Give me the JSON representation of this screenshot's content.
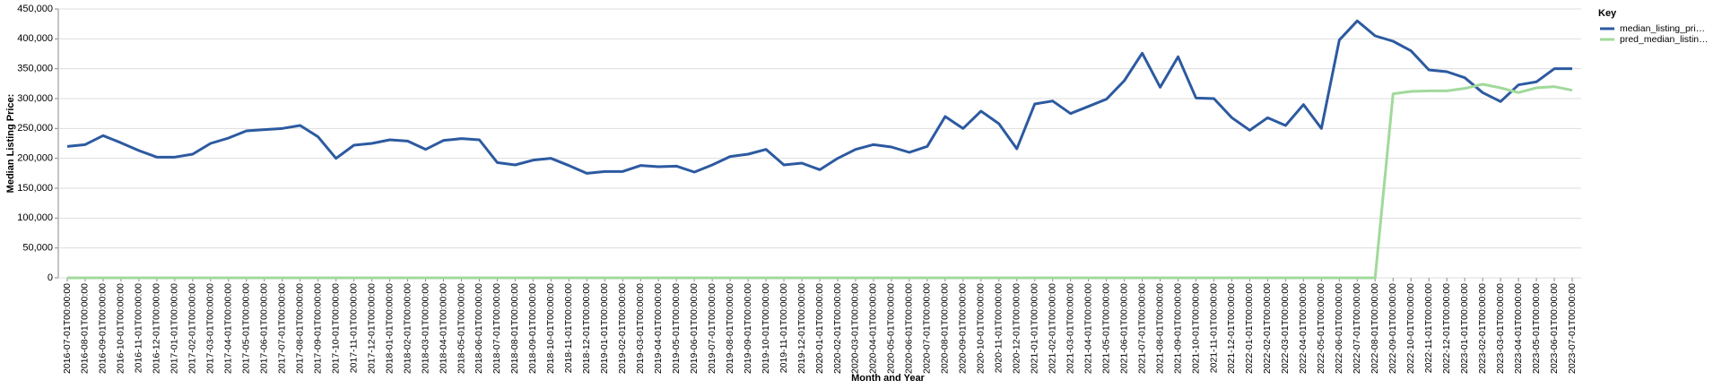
{
  "chart_data": {
    "type": "line",
    "x_label": "Month and Year",
    "y_label": "Median Listing Price:",
    "legend_title": "Key",
    "legend": "right",
    "grid": true,
    "categories": [
      "2016-07-01T00:00:00",
      "2016-08-01T00:00:00",
      "2016-09-01T00:00:00",
      "2016-10-01T00:00:00",
      "2016-11-01T00:00:00",
      "2016-12-01T00:00:00",
      "2017-01-01T00:00:00",
      "2017-02-01T00:00:00",
      "2017-03-01T00:00:00",
      "2017-04-01T00:00:00",
      "2017-05-01T00:00:00",
      "2017-06-01T00:00:00",
      "2017-07-01T00:00:00",
      "2017-08-01T00:00:00",
      "2017-09-01T00:00:00",
      "2017-10-01T00:00:00",
      "2017-11-01T00:00:00",
      "2017-12-01T00:00:00",
      "2018-01-01T00:00:00",
      "2018-02-01T00:00:00",
      "2018-03-01T00:00:00",
      "2018-04-01T00:00:00",
      "2018-05-01T00:00:00",
      "2018-06-01T00:00:00",
      "2018-07-01T00:00:00",
      "2018-08-01T00:00:00",
      "2018-09-01T00:00:00",
      "2018-10-01T00:00:00",
      "2018-11-01T00:00:00",
      "2018-12-01T00:00:00",
      "2019-01-01T00:00:00",
      "2019-02-01T00:00:00",
      "2019-03-01T00:00:00",
      "2019-04-01T00:00:00",
      "2019-05-01T00:00:00",
      "2019-06-01T00:00:00",
      "2019-07-01T00:00:00",
      "2019-08-01T00:00:00",
      "2019-09-01T00:00:00",
      "2019-10-01T00:00:00",
      "2019-11-01T00:00:00",
      "2019-12-01T00:00:00",
      "2020-01-01T00:00:00",
      "2020-02-01T00:00:00",
      "2020-03-01T00:00:00",
      "2020-04-01T00:00:00",
      "2020-05-01T00:00:00",
      "2020-06-01T00:00:00",
      "2020-07-01T00:00:00",
      "2020-08-01T00:00:00",
      "2020-09-01T00:00:00",
      "2020-10-01T00:00:00",
      "2020-11-01T00:00:00",
      "2020-12-01T00:00:00",
      "2021-01-01T00:00:00",
      "2021-02-01T00:00:00",
      "2021-03-01T00:00:00",
      "2021-04-01T00:00:00",
      "2021-05-01T00:00:00",
      "2021-06-01T00:00:00",
      "2021-07-01T00:00:00",
      "2021-08-01T00:00:00",
      "2021-09-01T00:00:00",
      "2021-10-01T00:00:00",
      "2021-11-01T00:00:00",
      "2021-12-01T00:00:00",
      "2022-01-01T00:00:00",
      "2022-02-01T00:00:00",
      "2022-03-01T00:00:00",
      "2022-04-01T00:00:00",
      "2022-05-01T00:00:00",
      "2022-06-01T00:00:00",
      "2022-07-01T00:00:00",
      "2022-08-01T00:00:00",
      "2022-09-01T00:00:00",
      "2022-10-01T00:00:00",
      "2022-11-01T00:00:00",
      "2022-12-01T00:00:00",
      "2023-01-01T00:00:00",
      "2023-02-01T00:00:00",
      "2023-03-01T00:00:00",
      "2023-04-01T00:00:00",
      "2023-05-01T00:00:00",
      "2023-06-01T00:00:00",
      "2023-07-01T00:00:00"
    ],
    "series": [
      {
        "name": "median_listing_pri…",
        "color": "#2c5aa0",
        "values": [
          220000,
          223000,
          238000,
          226000,
          213000,
          202000,
          202000,
          207000,
          225000,
          234000,
          246000,
          248000,
          250000,
          255000,
          236000,
          200000,
          222000,
          225000,
          231000,
          229000,
          215000,
          230000,
          233000,
          231000,
          193000,
          189000,
          197000,
          200000,
          188000,
          175000,
          178000,
          178000,
          188000,
          186000,
          187000,
          177000,
          189000,
          203000,
          207000,
          215000,
          189000,
          192000,
          181000,
          200000,
          215000,
          223000,
          219000,
          210000,
          220000,
          270000,
          250000,
          279000,
          258000,
          216000,
          291000,
          296000,
          275000,
          287000,
          299000,
          330000,
          376000,
          319000,
          370000,
          301000,
          300000,
          268000,
          247000,
          268000,
          255000,
          290000,
          250000,
          398000,
          430000,
          405000,
          396000,
          380000,
          348000,
          345000,
          335000,
          310000,
          295000,
          323000,
          328000,
          350000,
          350000
        ]
      },
      {
        "name": "pred_median_listin…",
        "color": "#a1d99b",
        "values": [
          0,
          0,
          0,
          0,
          0,
          0,
          0,
          0,
          0,
          0,
          0,
          0,
          0,
          0,
          0,
          0,
          0,
          0,
          0,
          0,
          0,
          0,
          0,
          0,
          0,
          0,
          0,
          0,
          0,
          0,
          0,
          0,
          0,
          0,
          0,
          0,
          0,
          0,
          0,
          0,
          0,
          0,
          0,
          0,
          0,
          0,
          0,
          0,
          0,
          0,
          0,
          0,
          0,
          0,
          0,
          0,
          0,
          0,
          0,
          0,
          0,
          0,
          0,
          0,
          0,
          0,
          0,
          0,
          0,
          0,
          0,
          0,
          0,
          0,
          308000,
          312000,
          313000,
          313000,
          317000,
          324000,
          318000,
          310000,
          318000,
          320000,
          314000
        ]
      }
    ],
    "ylim": [
      0,
      450000
    ],
    "yticks": [
      0,
      {
        "value": 50000,
        "label": "50,000"
      },
      {
        "value": 100000,
        "label": "100,000"
      },
      {
        "value": 150000,
        "label": "150,000"
      },
      {
        "value": 200000,
        "label": "200,000"
      },
      {
        "value": 250000,
        "label": "250,000"
      },
      {
        "value": 300000,
        "label": "300,000"
      },
      {
        "value": 350000,
        "label": "350,000"
      },
      {
        "value": 400000,
        "label": "400,000"
      },
      {
        "value": 450000,
        "label": "450,000"
      }
    ]
  }
}
